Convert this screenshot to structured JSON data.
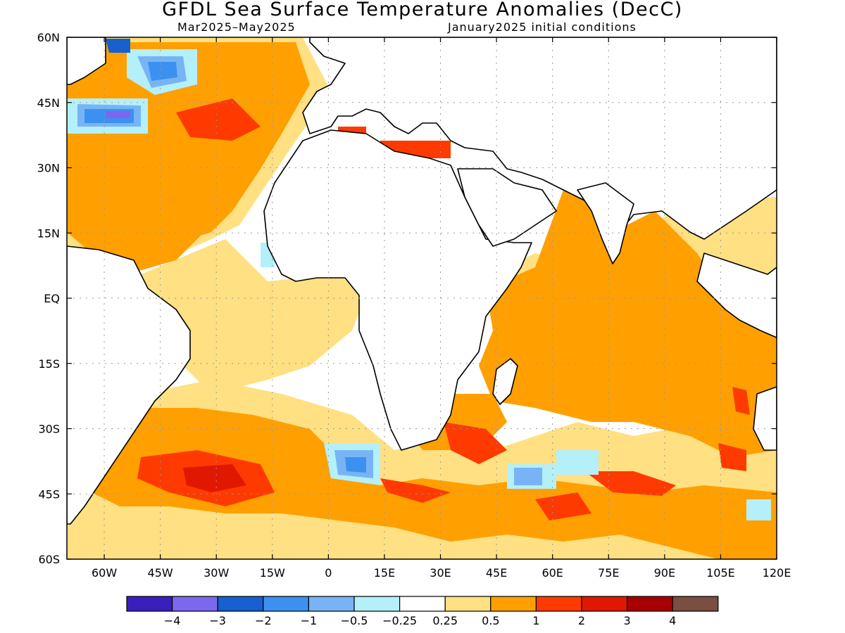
{
  "title": "GFDL Sea Surface Temperature Anomalies (DecC)",
  "subtitle_left": "Mar2025–May2025",
  "subtitle_right": "January2025 initial conditions",
  "lat_labels": [
    "60N",
    "45N",
    "30N",
    "15N",
    "EQ",
    "15S",
    "30S",
    "45S",
    "60S"
  ],
  "lon_labels": [
    "60W",
    "45W",
    "30W",
    "15W",
    "0",
    "15E",
    "30E",
    "45E",
    "60E",
    "75E",
    "90E",
    "105E",
    "120E"
  ],
  "colorbar": {
    "colors": [
      "#3a1fbd",
      "#7b68ee",
      "#1660d0",
      "#3c91f0",
      "#78b4f5",
      "#b4f0fa",
      "#ffffff",
      "#ffe082",
      "#ffa000",
      "#ff3a00",
      "#e01800",
      "#a80000",
      "#7a4e40"
    ],
    "labels": [
      "−4",
      "−3",
      "−2",
      "−1",
      "−0.5",
      "−0.25",
      "0.25",
      "0.5",
      "1",
      "2",
      "3",
      "4"
    ]
  },
  "map": {
    "lon_range": [
      -70,
      120
    ],
    "lat_range": [
      -60,
      60
    ],
    "grid": true
  }
}
